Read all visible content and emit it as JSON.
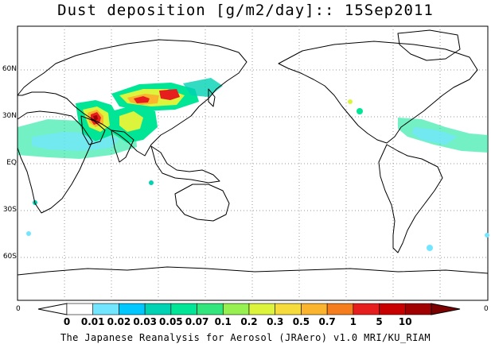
{
  "title": "Dust deposition [g/m2/day]:: 15Sep2011",
  "lat_labels": [
    "60N",
    "30N",
    "EQ",
    "30S",
    "60S"
  ],
  "lon_labels": [
    "0",
    "0"
  ],
  "colorbar": {
    "ticks": [
      "0",
      "0.01",
      "0.02",
      "0.03",
      "0.05",
      "0.07",
      "0.1",
      "0.2",
      "0.3",
      "0.5",
      "0.7",
      "1",
      "5",
      "10"
    ],
    "colors": [
      "#ffffff",
      "#ffffff",
      "#72e6ff",
      "#00c8ff",
      "#00d2b4",
      "#00e696",
      "#32e67d",
      "#96f050",
      "#dcf53c",
      "#f5dc3c",
      "#fab42d",
      "#f57d1e",
      "#e61e1e",
      "#c80000",
      "#a00000",
      "#7d0000"
    ]
  },
  "credit": "The Japanese Reanalysis for Aerosol (JRAero) v1.0 MRI/KU_RIAM"
}
